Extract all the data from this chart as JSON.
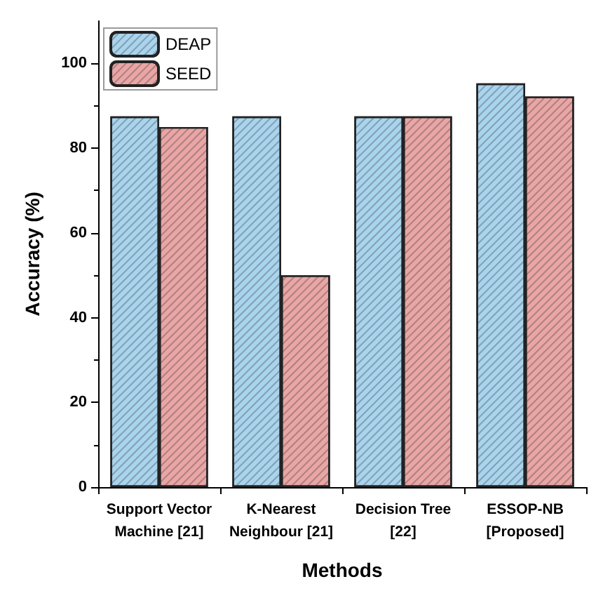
{
  "chart_data": {
    "type": "bar",
    "xlabel": "Methods",
    "ylabel": "Accuracy (%)",
    "categories": [
      "Support Vector\nMachine [21]",
      "K-Nearest\nNeighbour [21]",
      "Decision Tree\n[22]",
      "ESSOP-NB\n[Proposed]"
    ],
    "series": [
      {
        "name": "DEAP",
        "color": "#a9d4ee",
        "values": [
          87.5,
          87.5,
          87.5,
          95.3
        ]
      },
      {
        "name": "SEED",
        "color": "#eaa5a5",
        "values": [
          85,
          50,
          87.5,
          92.2
        ]
      }
    ],
    "ylim": [
      0,
      110
    ],
    "yticks": [
      0,
      20,
      40,
      60,
      80,
      100
    ],
    "grid": false,
    "legend": "top left"
  }
}
